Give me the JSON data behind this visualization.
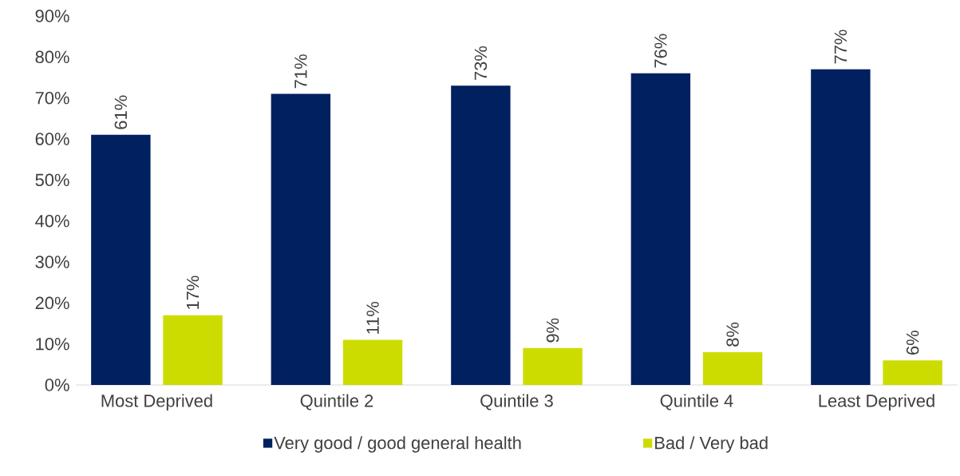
{
  "chart_data": {
    "type": "bar",
    "categories": [
      "Most Deprived",
      "Quintile 2",
      "Quintile 3",
      "Quintile 4",
      "Least Deprived"
    ],
    "series": [
      {
        "name": "Very good / good general health",
        "color": "#002060",
        "values": [
          61,
          71,
          73,
          76,
          77
        ],
        "value_labels": [
          "61%",
          "71%",
          "73%",
          "76%",
          "77%"
        ]
      },
      {
        "name": "Bad / Very bad",
        "color": "#cddc00",
        "values": [
          17,
          11,
          9,
          8,
          6
        ],
        "value_labels": [
          "17%",
          "11%",
          "9%",
          "8%",
          "6%"
        ]
      }
    ],
    "ylim": [
      0,
      90
    ],
    "yticks": [
      {
        "value": 0,
        "label": "0%"
      },
      {
        "value": 10,
        "label": "10%"
      },
      {
        "value": 20,
        "label": "20%"
      },
      {
        "value": 30,
        "label": "30%"
      },
      {
        "value": 40,
        "label": "40%"
      },
      {
        "value": 50,
        "label": "50%"
      },
      {
        "value": 60,
        "label": "60%"
      },
      {
        "value": 70,
        "label": "70%"
      },
      {
        "value": 80,
        "label": "80%"
      },
      {
        "value": 90,
        "label": "90%"
      }
    ],
    "grid": false,
    "legend": "bottom"
  }
}
